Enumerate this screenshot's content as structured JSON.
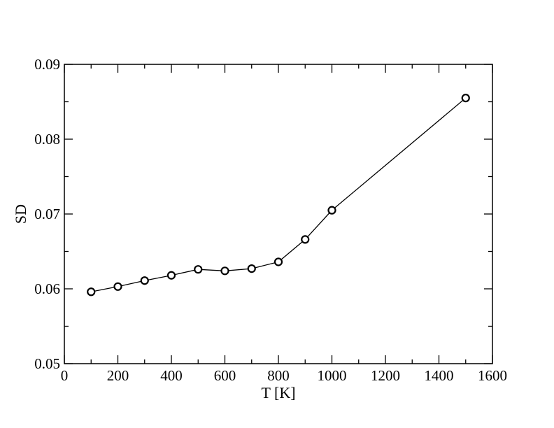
{
  "chart_data": {
    "type": "line",
    "title": "",
    "xlabel": "T [K]",
    "ylabel": "SD",
    "xlim": [
      0,
      1600
    ],
    "ylim": [
      0.05,
      0.09
    ],
    "x_ticks": [
      0,
      200,
      400,
      600,
      800,
      1000,
      1200,
      1400,
      1600
    ],
    "x_tick_labels": [
      "0",
      "200",
      "400",
      "600",
      "800",
      "1000",
      "1200",
      "1400",
      "1600"
    ],
    "y_ticks": [
      0.05,
      0.06,
      0.07,
      0.08,
      0.09
    ],
    "y_tick_labels": [
      "0.05",
      "0.06",
      "0.07",
      "0.08",
      "0.09"
    ],
    "grid": false,
    "legend": "none",
    "marker": "circle",
    "series": [
      {
        "x": [
          100,
          200,
          300,
          400,
          500,
          600,
          700,
          800,
          900,
          1000,
          1500
        ],
        "y": [
          0.0596,
          0.0603,
          0.0611,
          0.0618,
          0.0626,
          0.0624,
          0.0627,
          0.0636,
          0.0666,
          0.0705,
          0.0855
        ]
      }
    ]
  }
}
